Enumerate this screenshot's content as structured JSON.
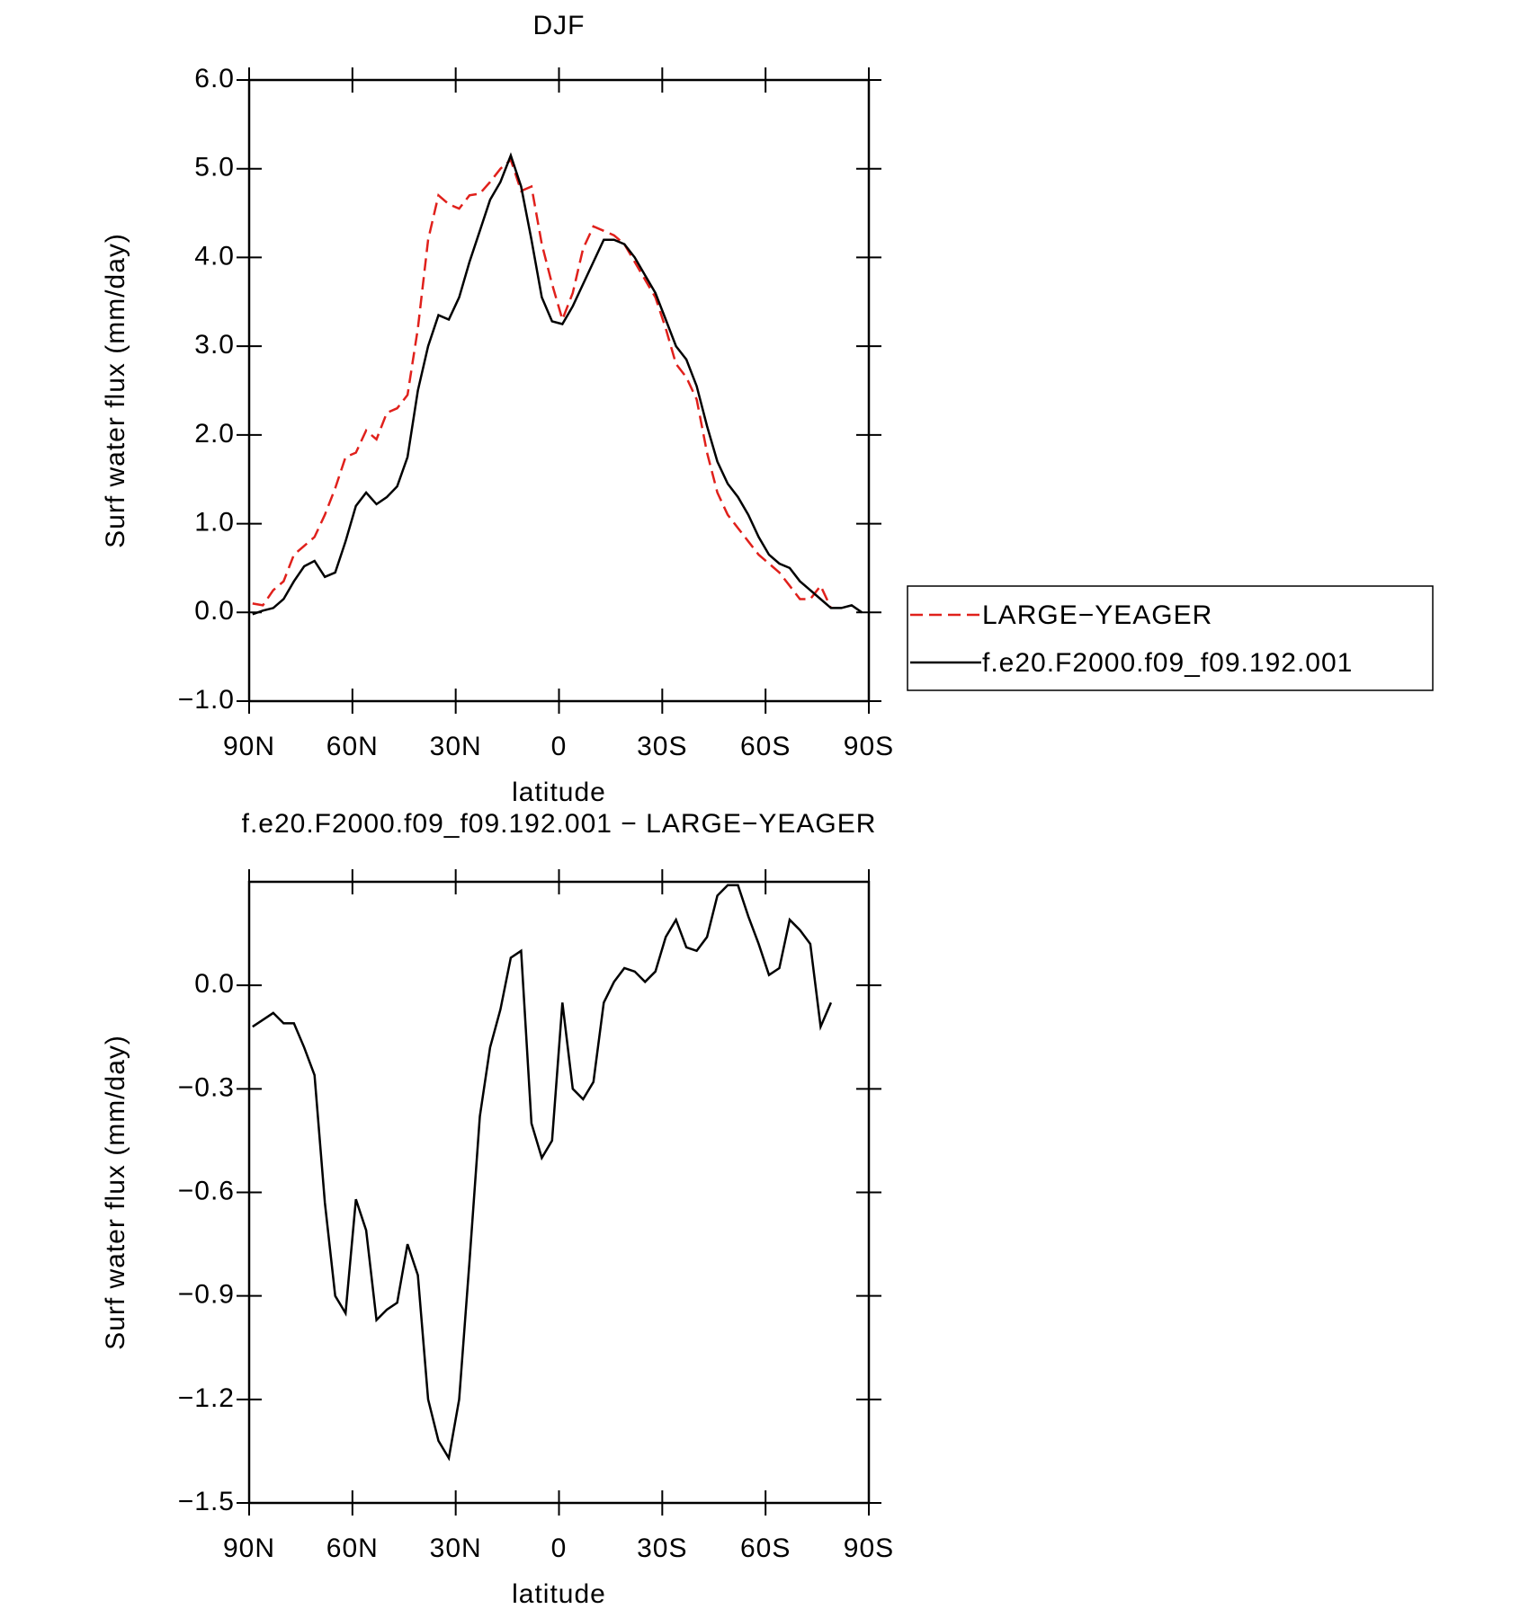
{
  "chart_data": [
    {
      "type": "line",
      "title": "DJF",
      "x_label": "latitude",
      "y_label": "Surf water flux (mm/day)",
      "x": [
        89,
        86,
        83,
        80,
        77,
        74,
        71,
        68,
        65,
        62,
        59,
        56,
        53,
        50,
        47,
        44,
        41,
        38,
        35,
        32,
        29,
        26,
        23,
        20,
        17,
        14,
        11,
        8,
        5,
        2,
        -1,
        -4,
        -7,
        -10,
        -13,
        -16,
        -19,
        -22,
        -25,
        -28,
        -31,
        -34,
        -37,
        -40,
        -43,
        -46,
        -49,
        -52,
        -55,
        -58,
        -61,
        -64,
        -67,
        -70,
        -73,
        -76,
        -79,
        -82,
        -85,
        -88
      ],
      "xlim": [
        90,
        -90
      ],
      "xticks": [
        {
          "value": 90,
          "label": "90N"
        },
        {
          "value": 60,
          "label": "60N"
        },
        {
          "value": 30,
          "label": "30N"
        },
        0,
        {
          "value": -30,
          "label": "30S"
        },
        {
          "value": -60,
          "label": "60S"
        },
        {
          "value": -90,
          "label": "90S"
        }
      ],
      "ylim": [
        -1,
        6
      ],
      "yticks": [
        {
          "value": 6,
          "label": "6.0"
        },
        {
          "value": 5,
          "label": "5.0"
        },
        {
          "value": 4,
          "label": "4.0"
        },
        {
          "value": 3,
          "label": "3.0"
        },
        {
          "value": 2,
          "label": "2.0"
        },
        {
          "value": 1,
          "label": "1.0"
        },
        {
          "value": 0,
          "label": "0.0"
        },
        {
          "value": -1,
          "label": "−1.0"
        }
      ],
      "legend": "right",
      "series": [
        {
          "name": "LARGE−YEAGER",
          "color": "#e0201b",
          "linestyle": "dashed",
          "values": [
            0.1,
            0.08,
            0.25,
            0.35,
            0.65,
            0.75,
            0.85,
            1.1,
            1.4,
            1.75,
            1.8,
            2.05,
            1.95,
            2.25,
            2.3,
            2.45,
            3.2,
            4.2,
            4.7,
            4.6,
            4.55,
            4.7,
            4.72,
            4.85,
            5.0,
            5.1,
            4.75,
            4.8,
            4.15,
            3.7,
            3.3,
            3.6,
            4.1,
            4.35,
            4.3,
            4.25,
            4.15,
            3.95,
            3.75,
            3.55,
            3.2,
            2.8,
            2.65,
            2.4,
            1.8,
            1.35,
            1.1,
            0.95,
            0.8,
            0.65,
            0.55,
            0.45,
            0.3,
            0.15,
            0.15,
            0.3,
            0.05,
            null,
            null,
            null
          ]
        },
        {
          "name": "f.e20.F2000.f09_f09.192.001",
          "color": "#000000",
          "linestyle": "solid",
          "values": [
            -0.02,
            0.02,
            0.05,
            0.15,
            0.35,
            0.52,
            0.58,
            0.4,
            0.45,
            0.8,
            1.2,
            1.35,
            1.22,
            1.3,
            1.42,
            1.75,
            2.5,
            3.0,
            3.35,
            3.3,
            3.55,
            3.95,
            4.3,
            4.65,
            4.85,
            5.15,
            4.8,
            4.2,
            3.55,
            3.28,
            3.25,
            3.45,
            3.7,
            3.95,
            4.2,
            4.2,
            4.15,
            4.0,
            3.8,
            3.6,
            3.3,
            3.0,
            2.85,
            2.55,
            2.1,
            1.7,
            1.45,
            1.3,
            1.1,
            0.85,
            0.65,
            0.55,
            0.5,
            0.35,
            0.25,
            0.15,
            0.05,
            0.05,
            0.08,
            0.0
          ]
        }
      ]
    },
    {
      "type": "line",
      "title": "f.e20.F2000.f09_f09.192.001 − LARGE−YEAGER",
      "x_label": "latitude",
      "y_label": "Surf water flux (mm/day)",
      "x": [
        89,
        86,
        83,
        80,
        77,
        74,
        71,
        68,
        65,
        62,
        59,
        56,
        53,
        50,
        47,
        44,
        41,
        38,
        35,
        32,
        29,
        26,
        23,
        20,
        17,
        14,
        11,
        8,
        5,
        2,
        -1,
        -4,
        -7,
        -10,
        -13,
        -16,
        -19,
        -22,
        -25,
        -28,
        -31,
        -34,
        -37,
        -40,
        -43,
        -46,
        -49,
        -52,
        -55,
        -58,
        -61,
        -64,
        -67,
        -70,
        -73,
        -76,
        -79,
        -82,
        -85,
        -88
      ],
      "xlim": [
        90,
        -90
      ],
      "xticks": [
        {
          "value": 90,
          "label": "90N"
        },
        {
          "value": 60,
          "label": "60N"
        },
        {
          "value": 30,
          "label": "30N"
        },
        0,
        {
          "value": -30,
          "label": "30S"
        },
        {
          "value": -60,
          "label": "60S"
        },
        {
          "value": -90,
          "label": "90S"
        }
      ],
      "ylim": [
        -1.5,
        0.3
      ],
      "yticks": [
        {
          "value": 0,
          "label": "0.0"
        },
        {
          "value": -0.3,
          "label": "−0.3"
        },
        {
          "value": -0.6,
          "label": "−0.6"
        },
        {
          "value": -0.9,
          "label": "−0.9"
        },
        {
          "value": -1.2,
          "label": "−1.2"
        },
        {
          "value": -1.5,
          "label": "−1.5"
        }
      ],
      "series": [
        {
          "color": "#000000",
          "linestyle": "solid",
          "values": [
            -0.12,
            -0.1,
            -0.08,
            -0.11,
            -0.11,
            -0.18,
            -0.26,
            -0.63,
            -0.9,
            -0.95,
            -0.62,
            -0.71,
            -0.97,
            -0.94,
            -0.92,
            -0.75,
            -0.84,
            -1.2,
            -1.32,
            -1.37,
            -1.2,
            -0.8,
            -0.38,
            -0.18,
            -0.07,
            0.08,
            0.1,
            -0.4,
            -0.5,
            -0.45,
            -0.05,
            -0.3,
            -0.33,
            -0.28,
            -0.05,
            0.01,
            0.05,
            0.04,
            0.01,
            0.04,
            0.14,
            0.19,
            0.11,
            0.1,
            0.14,
            0.26,
            0.29,
            0.29,
            0.2,
            0.12,
            0.03,
            0.05,
            0.19,
            0.16,
            0.12,
            -0.12,
            -0.05,
            null,
            null,
            null
          ]
        }
      ]
    }
  ]
}
